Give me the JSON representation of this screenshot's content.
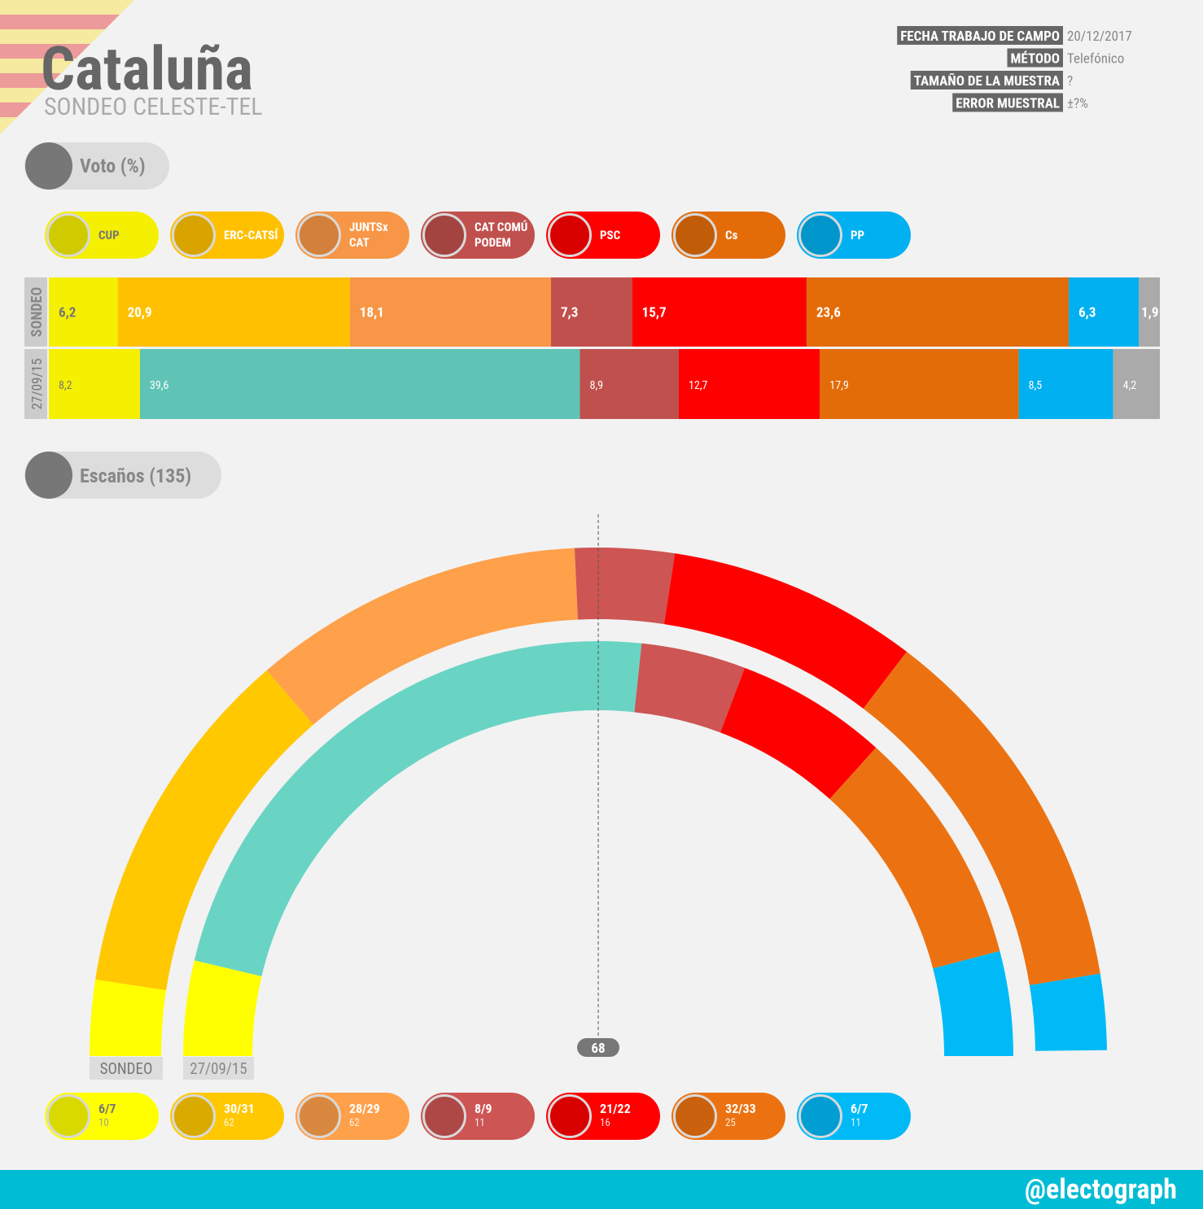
{
  "header": {
    "title": "Cataluña",
    "subtitle": "SONDEO CELESTE-TEL"
  },
  "fieldwork": [
    {
      "label": "FECHA TRABAJO DE CAMPO",
      "value": "20/12/2017"
    },
    {
      "label": "MÉTODO",
      "value": "Telefónico"
    },
    {
      "label": "TAMAÑO DE LA MUESTRA",
      "value": "?"
    },
    {
      "label": "ERROR MUESTRAL",
      "value": "±?%"
    }
  ],
  "chart_data": [
    {
      "type": "bar",
      "orientation": "horizontal",
      "stacked": true,
      "title": "Voto (%)",
      "categories": [
        "SONDEO",
        "27/09/15"
      ],
      "xlim": [
        0,
        100
      ],
      "series": [
        {
          "name": "CUP",
          "color": "#f5ef00",
          "values": [
            6.2,
            8.2
          ],
          "value_labels": [
            "6,2",
            "8,2"
          ]
        },
        {
          "name": "ERC-CATSÍ",
          "color": "#ffc000",
          "values": [
            20.9,
            null
          ],
          "value_labels": [
            "20,9",
            null
          ]
        },
        {
          "name": "JUNTSx CAT",
          "color": "#f79646",
          "values": [
            18.1,
            null
          ],
          "value_labels": [
            "18,1",
            null
          ]
        },
        {
          "color": "#5fc4b6",
          "values": [
            null,
            39.6
          ],
          "value_labels": [
            null,
            "39,6"
          ]
        },
        {
          "name": "CAT COMÚ PODEM",
          "color": "#c0504d",
          "values": [
            7.3,
            8.9
          ],
          "value_labels": [
            "7,3",
            "8,9"
          ]
        },
        {
          "name": "PSC",
          "color": "#ff0000",
          "values": [
            15.7,
            12.7
          ],
          "value_labels": [
            "15,7",
            "12,7"
          ]
        },
        {
          "name": "Cs",
          "color": "#e36c09",
          "values": [
            23.6,
            17.9
          ],
          "value_labels": [
            "23,6",
            "17,9"
          ]
        },
        {
          "name": "PP",
          "color": "#00b0f0",
          "values": [
            6.3,
            8.5
          ],
          "value_labels": [
            "6,3",
            "8,5"
          ]
        },
        {
          "color": "#aaaaaa",
          "values": [
            1.9,
            4.2
          ],
          "value_labels": [
            "1,9",
            "4,2"
          ]
        }
      ]
    },
    {
      "type": "parliament",
      "title": "Escaños (135)",
      "total": 135,
      "majority": 68,
      "rings": [
        "SONDEO",
        "27/09/15"
      ],
      "series": [
        {
          "name": "CUP",
          "color": "#ffff00",
          "values": [
            6,
            7
          ],
          "value_label": "6/7",
          "previous": 10
        },
        {
          "name": "ERC-CATSÍ",
          "color": "#ffc800",
          "values": [
            30,
            31
          ],
          "value_label": "30/31",
          "previous": null
        },
        {
          "name": "JUNTSx CAT",
          "color": "#ffa04a",
          "values": [
            28,
            29
          ],
          "value_label": "28/29",
          "previous": null
        },
        {
          "color": "#6ad4c4",
          "values": null,
          "previous": 62
        },
        {
          "name": "CAT COMÚ PODEM",
          "color": "#cd5553",
          "values": [
            8,
            9
          ],
          "value_label": "8/9",
          "previous": 11
        },
        {
          "name": "PSC",
          "color": "#ff0000",
          "values": [
            21,
            22
          ],
          "value_label": "21/22",
          "previous": 16
        },
        {
          "name": "Cs",
          "color": "#ec7211",
          "values": [
            32,
            33
          ],
          "value_label": "32/33",
          "previous": 25
        },
        {
          "name": "PP",
          "color": "#00baf7",
          "values": [
            6,
            7
          ],
          "value_label": "6/7",
          "previous": 11
        }
      ]
    }
  ],
  "footer": "@electograph"
}
